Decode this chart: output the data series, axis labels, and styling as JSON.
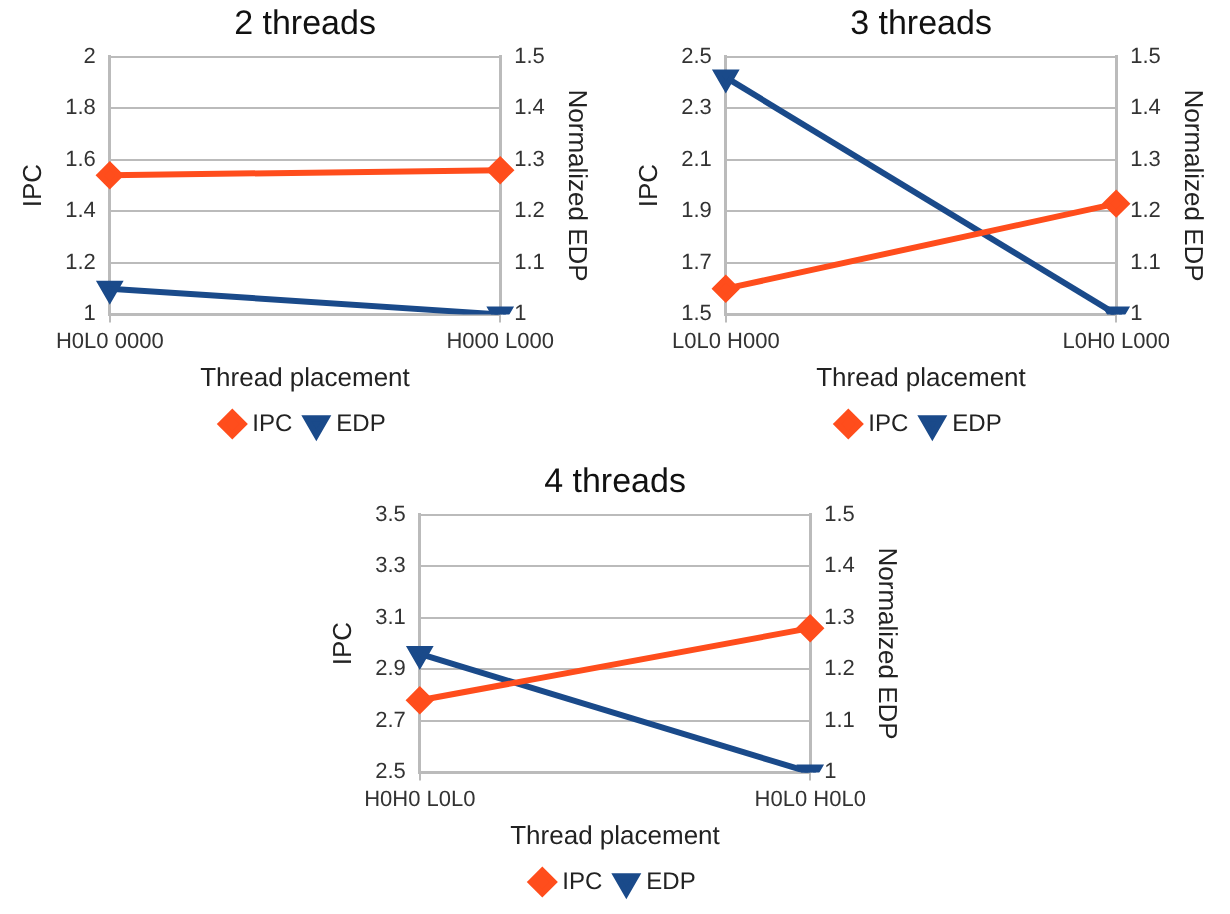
{
  "chart_data": [
    {
      "type": "line",
      "title": "2 threads",
      "xlabel": "Thread placement",
      "ylabel": "IPC",
      "y2label": "Normalized EDP",
      "categories": [
        "H0L0 0000",
        "H000 L000"
      ],
      "series": [
        {
          "name": "IPC",
          "color": "#ff4d1c",
          "values": [
            1.54,
            1.56
          ],
          "marker": "diamond"
        },
        {
          "name": "EDP",
          "color": "#1a4a8a",
          "values": [
            1.05,
            1.0
          ],
          "axis": "y2",
          "marker": "triangle"
        }
      ],
      "ylim": [
        1,
        2
      ],
      "yticks": [
        1,
        1.2,
        1.4,
        1.6,
        1.8,
        2
      ],
      "y2lim": [
        1,
        1.5
      ],
      "y2ticks": [
        1,
        1.1,
        1.2,
        1.3,
        1.4,
        1.5
      ],
      "grid": true,
      "legend": "bottom"
    },
    {
      "type": "line",
      "title": "3 threads",
      "xlabel": "Thread placement",
      "ylabel": "IPC",
      "y2label": "Normalized EDP",
      "categories": [
        "L0L0 H000",
        "L0H0 L000"
      ],
      "series": [
        {
          "name": "IPC",
          "color": "#ff4d1c",
          "values": [
            1.6,
            1.93
          ],
          "marker": "diamond"
        },
        {
          "name": "EDP",
          "color": "#1a4a8a",
          "values": [
            1.46,
            1.0
          ],
          "axis": "y2",
          "marker": "triangle"
        }
      ],
      "ylim": [
        1.5,
        2.5
      ],
      "yticks": [
        1.5,
        1.7,
        1.9,
        2.1,
        2.3,
        2.5
      ],
      "y2lim": [
        1,
        1.5
      ],
      "y2ticks": [
        1,
        1.1,
        1.2,
        1.3,
        1.4,
        1.5
      ],
      "grid": true,
      "legend": "bottom"
    },
    {
      "type": "line",
      "title": "4 threads",
      "xlabel": "Thread placement",
      "ylabel": "IPC",
      "y2label": "Normalized EDP",
      "categories": [
        "H0H0 L0L0",
        "H0L0 H0L0"
      ],
      "series": [
        {
          "name": "IPC",
          "color": "#ff4d1c",
          "values": [
            2.78,
            3.06
          ],
          "marker": "diamond"
        },
        {
          "name": "EDP",
          "color": "#1a4a8a",
          "values": [
            1.23,
            1.0
          ],
          "axis": "y2",
          "marker": "triangle"
        }
      ],
      "ylim": [
        2.5,
        3.5
      ],
      "yticks": [
        2.5,
        2.7,
        2.9,
        3.1,
        3.3,
        3.5
      ],
      "y2lim": [
        1,
        1.5
      ],
      "y2ticks": [
        1,
        1.1,
        1.2,
        1.3,
        1.4,
        1.5
      ],
      "grid": true,
      "legend": "bottom"
    }
  ]
}
